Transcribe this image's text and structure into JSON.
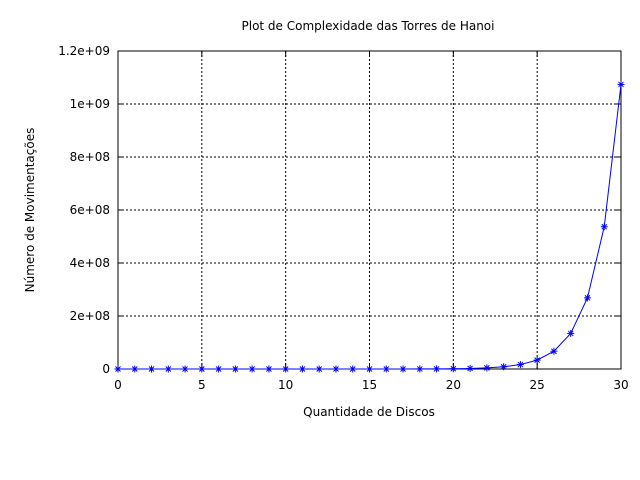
{
  "chart_data": {
    "type": "line",
    "title": "Plot de Complexidade das Torres de Hanoi",
    "xlabel": "Quantidade de Discos",
    "ylabel": "Número de Movimentações",
    "xlim": [
      0,
      30
    ],
    "ylim": [
      0,
      1200000000
    ],
    "x_ticks": [
      0,
      5,
      10,
      15,
      20,
      25,
      30
    ],
    "x_tick_labels": [
      "0",
      "5",
      "10",
      "15",
      "20",
      "25",
      "30"
    ],
    "y_ticks": [
      0,
      200000000,
      400000000,
      600000000,
      800000000,
      1000000000,
      1200000000
    ],
    "y_tick_labels": [
      "0",
      "2e+08",
      "4e+08",
      "6e+08",
      "8e+08",
      "1e+09",
      "1.2e+09"
    ],
    "grid": true,
    "legend": "none",
    "series": [
      {
        "color": "#0000ff",
        "marker": "asterisk",
        "x": [
          0,
          1,
          2,
          3,
          4,
          5,
          6,
          7,
          8,
          9,
          10,
          11,
          12,
          13,
          14,
          15,
          16,
          17,
          18,
          19,
          20,
          21,
          22,
          23,
          24,
          25,
          26,
          27,
          28,
          29,
          30
        ],
        "y": [
          0,
          1,
          3,
          7,
          15,
          31,
          63,
          127,
          255,
          511,
          1023,
          2047,
          4095,
          8191,
          16383,
          32767,
          65535,
          131071,
          262143,
          524287,
          1048575,
          2097151,
          4194303,
          8388607,
          16777215,
          33554431,
          67108863,
          134217727,
          268435455,
          536870911,
          1073741823
        ]
      }
    ]
  }
}
